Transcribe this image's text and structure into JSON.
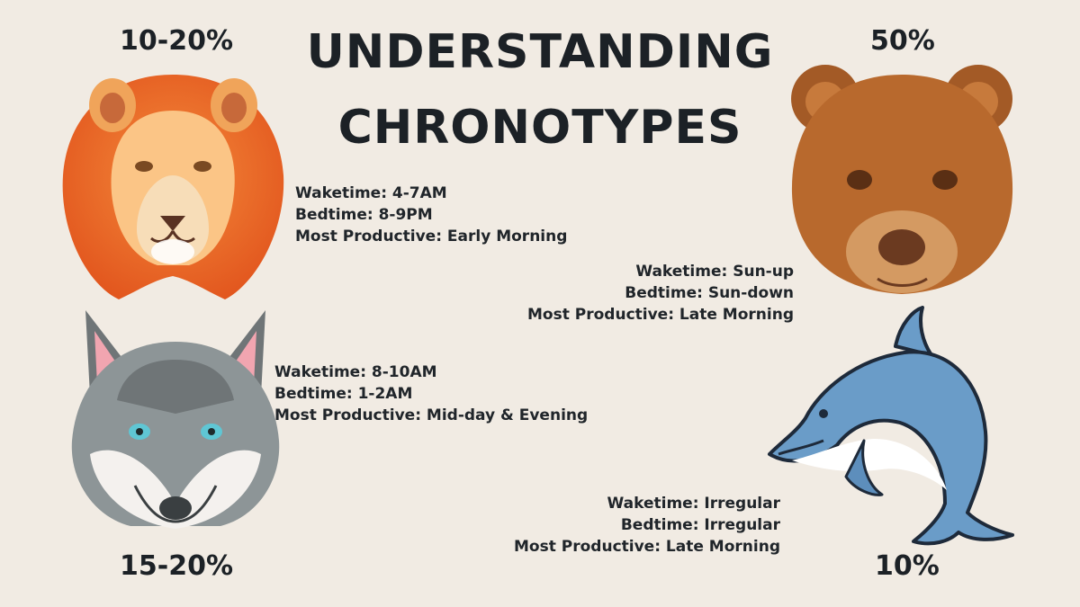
{
  "title_line1": "UNDERSTANDING",
  "title_line2": "CHRONOTYPES",
  "lion": {
    "percent": "10-20%",
    "waketime": "Waketime: 4-7AM",
    "bedtime": "Bedtime: 8-9PM",
    "productive": "Most Productive: Early Morning"
  },
  "bear": {
    "percent": "50%",
    "waketime": "Waketime: Sun-up",
    "bedtime": "Bedtime: Sun-down",
    "productive": "Most Productive: Late Morning"
  },
  "wolf": {
    "percent": "15-20%",
    "waketime": "Waketime: 8-10AM",
    "bedtime": "Bedtime: 1-2AM",
    "productive": "Most Productive: Mid-day & Evening"
  },
  "dolphin": {
    "percent": "10%",
    "waketime": "Waketime: Irregular",
    "bedtime": "Bedtime: Irregular",
    "productive": "Most Productive: Late Morning"
  },
  "icons": [
    "lion-icon",
    "bear-icon",
    "wolf-icon",
    "dolphin-icon"
  ]
}
